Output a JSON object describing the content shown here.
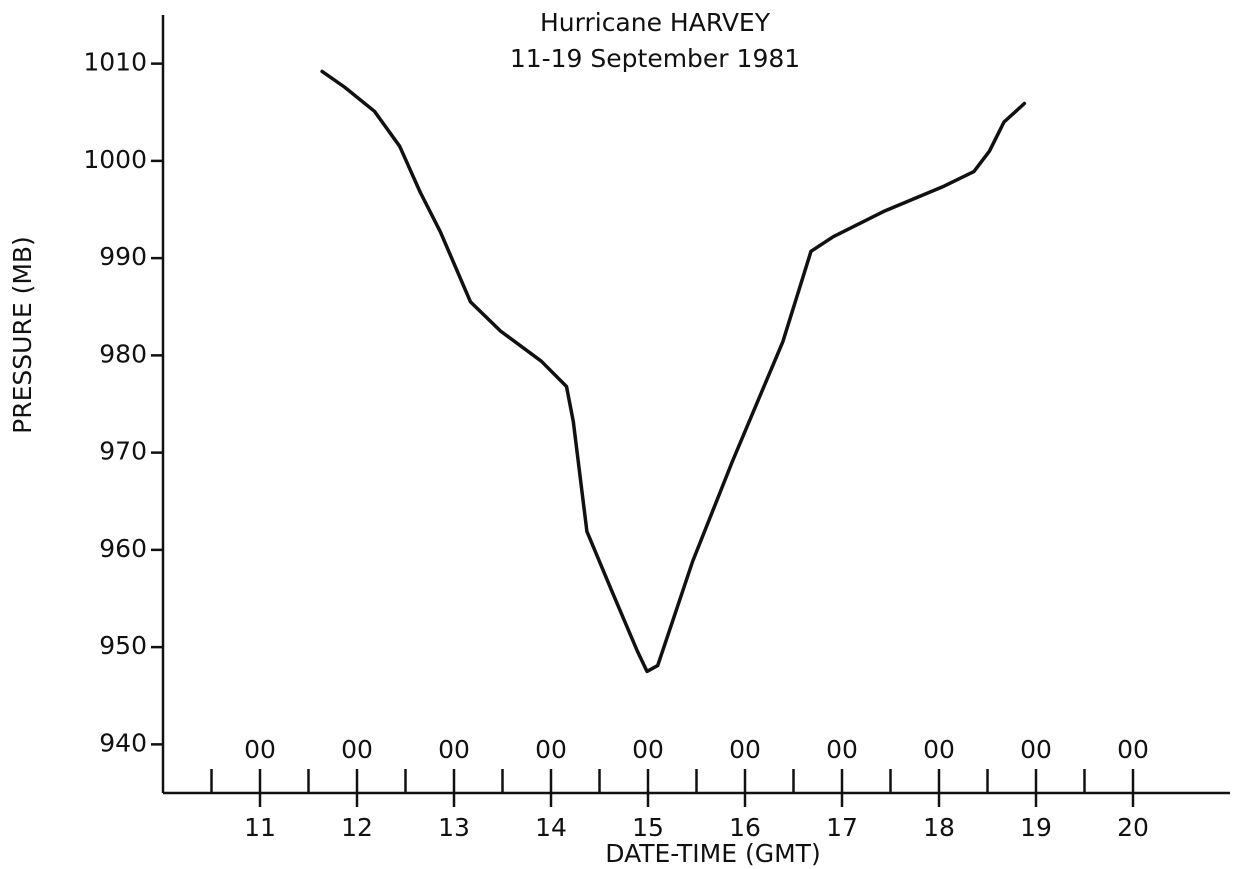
{
  "chart_data": {
    "type": "line",
    "title": [
      "Hurricane HARVEY",
      "11-19 September 1981"
    ],
    "x_label": "DATE-TIME (GMT)",
    "y_label": "PRESSURE (MB)",
    "x": [
      11.64,
      11.87,
      12.18,
      12.44,
      12.65,
      12.86,
      13.17,
      13.48,
      13.9,
      14.16,
      14.23,
      14.37,
      14.63,
      14.89,
      14.99,
      15.1,
      15.46,
      15.87,
      16.39,
      16.68,
      16.91,
      17.43,
      18.05,
      18.36,
      18.52,
      18.67,
      18.88
    ],
    "values": [
      1009.2,
      1007.6,
      1005.1,
      1001.5,
      996.8,
      992.7,
      985.5,
      982.5,
      979.4,
      976.8,
      973.2,
      961.9,
      955.7,
      949.6,
      947.5,
      948.1,
      958.8,
      969.1,
      981.4,
      990.7,
      992.2,
      994.8,
      997.4,
      998.9,
      1001,
      1004,
      1005.9
    ],
    "color": "#111111",
    "xlim": [
      10,
      21
    ],
    "xticks": [
      11,
      12,
      13,
      14,
      15,
      16,
      17,
      18,
      19,
      20
    ],
    "xtick_hour_label": "00",
    "xminor_ticks": [
      10.5,
      11.5,
      12.5,
      13.5,
      14.5,
      15.5,
      16.5,
      17.5,
      18.5,
      19.5
    ],
    "ylim": [
      935,
      1015
    ],
    "yticks": [
      940,
      950,
      960,
      970,
      980,
      990,
      1000,
      1010
    ],
    "grid": false
  }
}
